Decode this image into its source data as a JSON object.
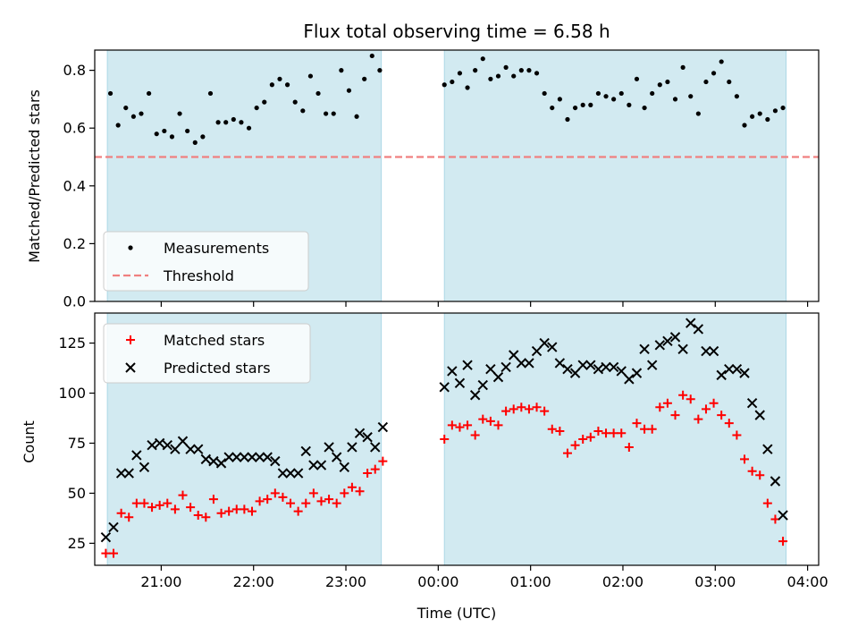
{
  "chart_data": [
    {
      "type": "scatter",
      "title": "Flux total observing time = 6.58 h",
      "xlabel": "",
      "ylabel": "Matched/Predicted stars",
      "ylim": [
        0,
        0.87
      ],
      "yticks": [
        0.0,
        0.2,
        0.4,
        0.6,
        0.8
      ],
      "ytick_labels": [
        "0.0",
        "0.2",
        "0.4",
        "0.6",
        "0.8"
      ],
      "x_unit": "hours from 2024 00:00 UTC (negative = previous day)",
      "legend": {
        "position": "lower-left",
        "entries": [
          "Measurements",
          "Threshold"
        ]
      },
      "colors": {
        "measurements": "#000000",
        "threshold": "#f08080",
        "shade": "#add8e6"
      },
      "threshold": 0.5,
      "shaded_intervals": [
        [
          "20:25",
          "23:23"
        ],
        [
          "00:04",
          "03:46"
        ]
      ],
      "series": [
        {
          "name": "Measurements",
          "points": [
            [
              "20:27",
              0.72
            ],
            [
              "20:32",
              0.61
            ],
            [
              "20:37",
              0.67
            ],
            [
              "20:42",
              0.64
            ],
            [
              "20:47",
              0.65
            ],
            [
              "20:52",
              0.72
            ],
            [
              "20:57",
              0.58
            ],
            [
              "21:02",
              0.59
            ],
            [
              "21:07",
              0.57
            ],
            [
              "21:12",
              0.65
            ],
            [
              "21:17",
              0.59
            ],
            [
              "21:22",
              0.55
            ],
            [
              "21:27",
              0.57
            ],
            [
              "21:32",
              0.72
            ],
            [
              "21:37",
              0.62
            ],
            [
              "21:42",
              0.62
            ],
            [
              "21:47",
              0.63
            ],
            [
              "21:52",
              0.62
            ],
            [
              "21:57",
              0.6
            ],
            [
              "22:02",
              0.67
            ],
            [
              "22:07",
              0.69
            ],
            [
              "22:12",
              0.75
            ],
            [
              "22:17",
              0.77
            ],
            [
              "22:22",
              0.75
            ],
            [
              "22:27",
              0.69
            ],
            [
              "22:32",
              0.66
            ],
            [
              "22:37",
              0.78
            ],
            [
              "22:42",
              0.72
            ],
            [
              "22:47",
              0.65
            ],
            [
              "22:52",
              0.65
            ],
            [
              "22:57",
              0.8
            ],
            [
              "23:02",
              0.73
            ],
            [
              "23:07",
              0.64
            ],
            [
              "23:12",
              0.77
            ],
            [
              "23:17",
              0.85
            ],
            [
              "23:22",
              0.8
            ],
            [
              "00:04",
              0.75
            ],
            [
              "00:09",
              0.76
            ],
            [
              "00:14",
              0.79
            ],
            [
              "00:19",
              0.74
            ],
            [
              "00:24",
              0.8
            ],
            [
              "00:29",
              0.84
            ],
            [
              "00:34",
              0.77
            ],
            [
              "00:39",
              0.78
            ],
            [
              "00:44",
              0.81
            ],
            [
              "00:49",
              0.78
            ],
            [
              "00:54",
              0.8
            ],
            [
              "00:59",
              0.8
            ],
            [
              "01:04",
              0.79
            ],
            [
              "01:09",
              0.72
            ],
            [
              "01:14",
              0.67
            ],
            [
              "01:19",
              0.7
            ],
            [
              "01:24",
              0.63
            ],
            [
              "01:29",
              0.67
            ],
            [
              "01:34",
              0.68
            ],
            [
              "01:39",
              0.68
            ],
            [
              "01:44",
              0.72
            ],
            [
              "01:49",
              0.71
            ],
            [
              "01:54",
              0.7
            ],
            [
              "01:59",
              0.72
            ],
            [
              "02:04",
              0.68
            ],
            [
              "02:09",
              0.77
            ],
            [
              "02:14",
              0.67
            ],
            [
              "02:19",
              0.72
            ],
            [
              "02:24",
              0.75
            ],
            [
              "02:29",
              0.76
            ],
            [
              "02:34",
              0.7
            ],
            [
              "02:39",
              0.81
            ],
            [
              "02:44",
              0.71
            ],
            [
              "02:49",
              0.65
            ],
            [
              "02:54",
              0.76
            ],
            [
              "02:59",
              0.79
            ],
            [
              "03:04",
              0.83
            ],
            [
              "03:09",
              0.76
            ],
            [
              "03:14",
              0.71
            ],
            [
              "03:19",
              0.61
            ],
            [
              "03:24",
              0.64
            ],
            [
              "03:29",
              0.65
            ],
            [
              "03:34",
              0.63
            ],
            [
              "03:39",
              0.66
            ],
            [
              "03:44",
              0.67
            ]
          ]
        }
      ]
    },
    {
      "type": "scatter",
      "title": "",
      "xlabel": "Time (UTC)",
      "ylabel": "Count",
      "ylim": [
        14,
        140
      ],
      "yticks": [
        25,
        50,
        75,
        100,
        125
      ],
      "ytick_labels": [
        "25",
        "50",
        "75",
        "100",
        "125"
      ],
      "xticks": [
        "21:00",
        "22:00",
        "23:00",
        "00:00",
        "01:00",
        "02:00",
        "03:00",
        "04:00"
      ],
      "legend": {
        "position": "upper-left",
        "entries": [
          "Matched stars",
          "Predicted stars"
        ]
      },
      "colors": {
        "matched": "#ff0000",
        "predicted": "#000000",
        "shade": "#add8e6"
      },
      "shaded_intervals": [
        [
          "20:25",
          "23:23"
        ],
        [
          "00:04",
          "03:46"
        ]
      ],
      "series": [
        {
          "name": "Matched stars",
          "marker": "plus",
          "points": [
            [
              "20:24",
              20
            ],
            [
              "20:29",
              20
            ],
            [
              "20:34",
              40
            ],
            [
              "20:39",
              38
            ],
            [
              "20:44",
              45
            ],
            [
              "20:49",
              45
            ],
            [
              "20:54",
              43
            ],
            [
              "20:59",
              44
            ],
            [
              "21:04",
              45
            ],
            [
              "21:09",
              42
            ],
            [
              "21:14",
              49
            ],
            [
              "21:19",
              43
            ],
            [
              "21:24",
              39
            ],
            [
              "21:29",
              38
            ],
            [
              "21:34",
              47
            ],
            [
              "21:39",
              40
            ],
            [
              "21:44",
              41
            ],
            [
              "21:49",
              42
            ],
            [
              "21:54",
              42
            ],
            [
              "21:59",
              41
            ],
            [
              "22:04",
              46
            ],
            [
              "22:09",
              47
            ],
            [
              "22:14",
              50
            ],
            [
              "22:19",
              48
            ],
            [
              "22:24",
              45
            ],
            [
              "22:29",
              41
            ],
            [
              "22:34",
              45
            ],
            [
              "22:39",
              50
            ],
            [
              "22:44",
              46
            ],
            [
              "22:49",
              47
            ],
            [
              "22:54",
              45
            ],
            [
              "22:59",
              50
            ],
            [
              "23:04",
              53
            ],
            [
              "23:09",
              51
            ],
            [
              "23:14",
              60
            ],
            [
              "23:19",
              62
            ],
            [
              "23:24",
              66
            ],
            [
              "00:04",
              77
            ],
            [
              "00:09",
              84
            ],
            [
              "00:14",
              83
            ],
            [
              "00:19",
              84
            ],
            [
              "00:24",
              79
            ],
            [
              "00:29",
              87
            ],
            [
              "00:34",
              86
            ],
            [
              "00:39",
              84
            ],
            [
              "00:44",
              91
            ],
            [
              "00:49",
              92
            ],
            [
              "00:54",
              93
            ],
            [
              "00:59",
              92
            ],
            [
              "01:04",
              93
            ],
            [
              "01:09",
              91
            ],
            [
              "01:14",
              82
            ],
            [
              "01:19",
              81
            ],
            [
              "01:24",
              70
            ],
            [
              "01:29",
              74
            ],
            [
              "01:34",
              77
            ],
            [
              "01:39",
              78
            ],
            [
              "01:44",
              81
            ],
            [
              "01:49",
              80
            ],
            [
              "01:54",
              80
            ],
            [
              "01:59",
              80
            ],
            [
              "02:04",
              73
            ],
            [
              "02:09",
              85
            ],
            [
              "02:14",
              82
            ],
            [
              "02:19",
              82
            ],
            [
              "02:24",
              93
            ],
            [
              "02:29",
              95
            ],
            [
              "02:34",
              89
            ],
            [
              "02:39",
              99
            ],
            [
              "02:44",
              97
            ],
            [
              "02:49",
              87
            ],
            [
              "02:54",
              92
            ],
            [
              "02:59",
              95
            ],
            [
              "03:04",
              89
            ],
            [
              "03:09",
              85
            ],
            [
              "03:14",
              79
            ],
            [
              "03:19",
              67
            ],
            [
              "03:24",
              61
            ],
            [
              "03:29",
              59
            ],
            [
              "03:34",
              45
            ],
            [
              "03:39",
              37
            ],
            [
              "03:44",
              26
            ]
          ]
        },
        {
          "name": "Predicted stars",
          "marker": "x",
          "points": [
            [
              "20:24",
              28
            ],
            [
              "20:29",
              33
            ],
            [
              "20:34",
              60
            ],
            [
              "20:39",
              60
            ],
            [
              "20:44",
              69
            ],
            [
              "20:49",
              63
            ],
            [
              "20:54",
              74
            ],
            [
              "20:59",
              75
            ],
            [
              "21:04",
              74
            ],
            [
              "21:09",
              72
            ],
            [
              "21:14",
              76
            ],
            [
              "21:19",
              72
            ],
            [
              "21:24",
              72
            ],
            [
              "21:29",
              67
            ],
            [
              "21:34",
              66
            ],
            [
              "21:39",
              65
            ],
            [
              "21:44",
              68
            ],
            [
              "21:49",
              68
            ],
            [
              "21:54",
              68
            ],
            [
              "21:59",
              68
            ],
            [
              "22:04",
              68
            ],
            [
              "22:09",
              68
            ],
            [
              "22:14",
              66
            ],
            [
              "22:19",
              60
            ],
            [
              "22:24",
              60
            ],
            [
              "22:29",
              60
            ],
            [
              "22:34",
              71
            ],
            [
              "22:39",
              64
            ],
            [
              "22:44",
              64
            ],
            [
              "22:49",
              73
            ],
            [
              "22:54",
              68
            ],
            [
              "22:59",
              63
            ],
            [
              "23:04",
              73
            ],
            [
              "23:09",
              80
            ],
            [
              "23:14",
              78
            ],
            [
              "23:19",
              73
            ],
            [
              "23:24",
              83
            ],
            [
              "00:04",
              103
            ],
            [
              "00:09",
              111
            ],
            [
              "00:14",
              105
            ],
            [
              "00:19",
              114
            ],
            [
              "00:24",
              99
            ],
            [
              "00:29",
              104
            ],
            [
              "00:34",
              112
            ],
            [
              "00:39",
              108
            ],
            [
              "00:44",
              113
            ],
            [
              "00:49",
              119
            ],
            [
              "00:54",
              115
            ],
            [
              "00:59",
              115
            ],
            [
              "01:04",
              121
            ],
            [
              "01:09",
              125
            ],
            [
              "01:14",
              123
            ],
            [
              "01:19",
              115
            ],
            [
              "01:24",
              112
            ],
            [
              "01:29",
              110
            ],
            [
              "01:34",
              114
            ],
            [
              "01:39",
              114
            ],
            [
              "01:44",
              112
            ],
            [
              "01:49",
              113
            ],
            [
              "01:54",
              113
            ],
            [
              "01:59",
              111
            ],
            [
              "02:04",
              107
            ],
            [
              "02:09",
              110
            ],
            [
              "02:14",
              122
            ],
            [
              "02:19",
              114
            ],
            [
              "02:24",
              124
            ],
            [
              "02:29",
              126
            ],
            [
              "02:34",
              128
            ],
            [
              "02:39",
              122
            ],
            [
              "02:44",
              135
            ],
            [
              "02:49",
              132
            ],
            [
              "02:54",
              121
            ],
            [
              "02:59",
              121
            ],
            [
              "03:04",
              109
            ],
            [
              "03:09",
              112
            ],
            [
              "03:14",
              112
            ],
            [
              "03:19",
              110
            ],
            [
              "03:24",
              95
            ],
            [
              "03:29",
              89
            ],
            [
              "03:34",
              72
            ],
            [
              "03:39",
              56
            ],
            [
              "03:44",
              39
            ]
          ]
        }
      ]
    }
  ]
}
